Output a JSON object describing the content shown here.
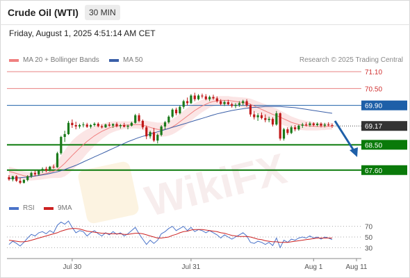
{
  "header": {
    "title": "Crude Oil (WTI)",
    "timeframe": "30 MIN"
  },
  "timestamp": "Friday, August 1, 2025 4:51:14 AM CET",
  "legend": {
    "ma20": "MA 20 + Bollinger Bands",
    "ma50": "MA 50",
    "rsi": "RSI",
    "rsi_ma": "9MA"
  },
  "credit": "Research © 2025 Trading Central",
  "watermark": "WikiFX",
  "colors": {
    "bull": "#1a7a1a",
    "bear": "#c01818",
    "support": "#0a7a0a",
    "resistance": "#e88080",
    "pivot": "#1e5fa8",
    "ma20": "#f08080",
    "ma50": "#3a5fa8",
    "rsi": "#4a73c9",
    "rsi_ma": "#cc2222",
    "arrow": "#1e5fa8"
  },
  "levels": [
    {
      "value": "71.10",
      "kind": "resistance"
    },
    {
      "value": "70.50",
      "kind": "resistance"
    },
    {
      "value": "69.90",
      "kind": "pivot"
    },
    {
      "value": "69.17",
      "kind": "last"
    },
    {
      "value": "68.50",
      "kind": "support"
    },
    {
      "value": "67.60",
      "kind": "support"
    }
  ],
  "x_axis": [
    "Jul 30",
    "Jul 31",
    "Aug 1",
    "Aug 11"
  ],
  "rsi_axis": [
    "70",
    "50",
    "30"
  ],
  "chart_data": {
    "type": "candlestick",
    "price_ylim": [
      67.1,
      71.3
    ],
    "rsi_ylim": [
      20,
      80
    ],
    "candles": [
      [
        67.35,
        67.42,
        67.22,
        67.27
      ],
      [
        67.27,
        67.4,
        67.2,
        67.38
      ],
      [
        67.38,
        67.42,
        67.18,
        67.22
      ],
      [
        67.22,
        67.33,
        67.1,
        67.15
      ],
      [
        67.15,
        67.28,
        67.12,
        67.25
      ],
      [
        67.25,
        67.42,
        67.2,
        67.38
      ],
      [
        67.38,
        67.55,
        67.32,
        67.5
      ],
      [
        67.5,
        67.58,
        67.38,
        67.45
      ],
      [
        67.45,
        67.62,
        67.4,
        67.58
      ],
      [
        67.58,
        67.7,
        67.5,
        67.64
      ],
      [
        67.64,
        67.72,
        67.52,
        67.58
      ],
      [
        67.58,
        67.75,
        67.55,
        67.72
      ],
      [
        67.72,
        67.8,
        67.65,
        67.7
      ],
      [
        67.7,
        68.25,
        67.68,
        68.2
      ],
      [
        68.2,
        68.82,
        68.15,
        68.78
      ],
      [
        68.78,
        69.0,
        68.6,
        68.88
      ],
      [
        68.88,
        69.35,
        68.85,
        69.28
      ],
      [
        69.28,
        69.4,
        69.1,
        69.2
      ],
      [
        69.2,
        69.32,
        69.05,
        69.15
      ],
      [
        69.15,
        69.25,
        69.08,
        69.2
      ],
      [
        69.2,
        69.3,
        69.12,
        69.22
      ],
      [
        69.22,
        69.28,
        69.1,
        69.14
      ],
      [
        69.14,
        69.24,
        69.08,
        69.2
      ],
      [
        69.2,
        69.3,
        69.15,
        69.25
      ],
      [
        69.25,
        69.3,
        69.12,
        69.16
      ],
      [
        69.16,
        69.22,
        69.08,
        69.12
      ],
      [
        69.12,
        69.25,
        69.1,
        69.22
      ],
      [
        69.22,
        69.3,
        69.14,
        69.18
      ],
      [
        69.18,
        69.26,
        69.1,
        69.24
      ],
      [
        69.24,
        69.3,
        69.12,
        69.16
      ],
      [
        69.16,
        69.24,
        69.08,
        69.2
      ],
      [
        69.2,
        69.28,
        69.12,
        69.14
      ],
      [
        69.14,
        69.22,
        69.05,
        69.18
      ],
      [
        69.18,
        69.32,
        69.15,
        69.28
      ],
      [
        69.28,
        69.6,
        69.25,
        69.55
      ],
      [
        69.55,
        69.62,
        69.3,
        69.35
      ],
      [
        69.35,
        69.4,
        69.05,
        69.12
      ],
      [
        69.12,
        69.18,
        68.7,
        68.8
      ],
      [
        68.8,
        69.0,
        68.72,
        68.95
      ],
      [
        68.95,
        69.1,
        68.6,
        68.65
      ],
      [
        68.65,
        68.9,
        68.55,
        68.85
      ],
      [
        68.85,
        69.2,
        68.8,
        69.15
      ],
      [
        69.15,
        69.35,
        69.05,
        69.3
      ],
      [
        69.3,
        69.55,
        69.25,
        69.5
      ],
      [
        69.5,
        69.8,
        69.45,
        69.75
      ],
      [
        69.75,
        69.82,
        69.55,
        69.62
      ],
      [
        69.62,
        69.9,
        69.58,
        69.85
      ],
      [
        69.85,
        70.1,
        69.78,
        70.05
      ],
      [
        70.05,
        70.18,
        69.9,
        69.98
      ],
      [
        69.98,
        70.3,
        69.95,
        70.25
      ],
      [
        70.25,
        70.35,
        70.05,
        70.12
      ],
      [
        70.12,
        70.3,
        70.08,
        70.25
      ],
      [
        70.25,
        70.32,
        70.15,
        70.22
      ],
      [
        70.22,
        70.3,
        70.08,
        70.12
      ],
      [
        70.12,
        70.25,
        70.05,
        70.2
      ],
      [
        70.2,
        70.28,
        70.1,
        70.15
      ],
      [
        70.15,
        70.22,
        70.0,
        70.05
      ],
      [
        70.05,
        70.12,
        69.9,
        69.95
      ],
      [
        69.95,
        70.08,
        69.88,
        70.02
      ],
      [
        70.02,
        70.1,
        69.9,
        69.94
      ],
      [
        69.94,
        70.0,
        69.82,
        69.88
      ],
      [
        69.88,
        69.98,
        69.8,
        69.92
      ],
      [
        69.92,
        70.05,
        69.85,
        69.98
      ],
      [
        69.98,
        70.1,
        69.9,
        70.05
      ],
      [
        70.05,
        70.12,
        69.85,
        69.9
      ],
      [
        69.9,
        69.95,
        69.5,
        69.58
      ],
      [
        69.58,
        69.7,
        69.4,
        69.48
      ],
      [
        69.48,
        69.62,
        69.35,
        69.55
      ],
      [
        69.55,
        69.65,
        69.4,
        69.45
      ],
      [
        69.45,
        69.58,
        69.3,
        69.38
      ],
      [
        69.38,
        69.5,
        69.3,
        69.42
      ],
      [
        69.42,
        69.48,
        69.15,
        69.22
      ],
      [
        69.22,
        69.7,
        69.18,
        69.62
      ],
      [
        69.62,
        69.65,
        68.65,
        68.72
      ],
      [
        68.72,
        69.1,
        68.65,
        69.05
      ],
      [
        69.05,
        69.12,
        68.85,
        68.92
      ],
      [
        68.92,
        69.18,
        68.88,
        69.12
      ],
      [
        69.12,
        69.2,
        68.98,
        69.05
      ],
      [
        69.05,
        69.22,
        69.0,
        69.18
      ],
      [
        69.18,
        69.28,
        69.1,
        69.22
      ],
      [
        69.22,
        69.3,
        69.15,
        69.2
      ],
      [
        69.2,
        69.32,
        69.14,
        69.26
      ],
      [
        69.26,
        69.3,
        69.15,
        69.2
      ],
      [
        69.2,
        69.3,
        69.15,
        69.25
      ],
      [
        69.25,
        69.3,
        69.12,
        69.18
      ],
      [
        69.18,
        69.28,
        69.12,
        69.22
      ],
      [
        69.22,
        69.3,
        69.15,
        69.2
      ],
      [
        69.2,
        69.26,
        69.1,
        69.17
      ]
    ],
    "ma20": [
      67.55,
      67.52,
      67.48,
      67.44,
      67.4,
      67.38,
      67.38,
      67.4,
      67.42,
      67.45,
      67.48,
      67.52,
      67.56,
      67.62,
      67.72,
      67.84,
      67.98,
      68.12,
      68.25,
      68.38,
      68.5,
      68.62,
      68.72,
      68.82,
      68.9,
      68.98,
      69.04,
      69.1,
      69.14,
      69.17,
      69.18,
      69.2,
      69.2,
      69.21,
      69.22,
      69.22,
      69.2,
      69.16,
      69.12,
      69.08,
      69.05,
      69.04,
      69.05,
      69.08,
      69.14,
      69.22,
      69.32,
      69.42,
      69.52,
      69.62,
      69.72,
      69.8,
      69.88,
      69.94,
      70.0,
      70.04,
      70.06,
      70.08,
      70.08,
      70.08,
      70.06,
      70.04,
      70.02,
      70.0,
      69.98,
      69.94,
      69.88,
      69.82,
      69.76,
      69.7,
      69.64,
      69.58,
      69.54,
      69.48,
      69.42,
      69.36,
      69.3,
      69.26,
      69.22,
      69.2,
      69.18,
      69.17,
      69.16,
      69.15,
      69.15,
      69.15,
      69.16,
      69.16
    ],
    "ma50": [
      67.3,
      67.31,
      67.32,
      67.33,
      67.34,
      67.35,
      67.37,
      67.39,
      67.41,
      67.43,
      67.45,
      67.48,
      67.51,
      67.54,
      67.58,
      67.62,
      67.67,
      67.72,
      67.77,
      67.83,
      67.89,
      67.95,
      68.01,
      68.07,
      68.13,
      68.19,
      68.25,
      68.31,
      68.37,
      68.43,
      68.49,
      68.55,
      68.61,
      68.66,
      68.71,
      68.76,
      68.8,
      68.84,
      68.88,
      68.92,
      68.96,
      69.0,
      69.04,
      69.08,
      69.12,
      69.16,
      69.2,
      69.24,
      69.28,
      69.32,
      69.36,
      69.4,
      69.44,
      69.48,
      69.52,
      69.56,
      69.6,
      69.63,
      69.66,
      69.69,
      69.72,
      69.74,
      69.76,
      69.78,
      69.8,
      69.82,
      69.83,
      69.84,
      69.85,
      69.86,
      69.86,
      69.86,
      69.86,
      69.86,
      69.85,
      69.84,
      69.83,
      69.82,
      69.8,
      69.78,
      69.76,
      69.74,
      69.72,
      69.7,
      69.68,
      69.66,
      69.64,
      69.62
    ],
    "bb_width": [
      0.35,
      0.34,
      0.33,
      0.32,
      0.3,
      0.3,
      0.3,
      0.32,
      0.34,
      0.36,
      0.38,
      0.42,
      0.48,
      0.6,
      0.78,
      0.92,
      1.02,
      1.06,
      1.05,
      1.0,
      0.94,
      0.86,
      0.78,
      0.7,
      0.62,
      0.55,
      0.48,
      0.42,
      0.38,
      0.34,
      0.3,
      0.28,
      0.26,
      0.26,
      0.28,
      0.3,
      0.34,
      0.38,
      0.42,
      0.46,
      0.48,
      0.5,
      0.5,
      0.52,
      0.54,
      0.56,
      0.58,
      0.58,
      0.58,
      0.56,
      0.52,
      0.48,
      0.44,
      0.4,
      0.36,
      0.34,
      0.32,
      0.3,
      0.3,
      0.3,
      0.3,
      0.32,
      0.34,
      0.36,
      0.38,
      0.4,
      0.42,
      0.44,
      0.46,
      0.48,
      0.5,
      0.5,
      0.5,
      0.48,
      0.46,
      0.44,
      0.42,
      0.4,
      0.38,
      0.36,
      0.34,
      0.32,
      0.3,
      0.28,
      0.26,
      0.25,
      0.24,
      0.24
    ],
    "rsi": [
      36,
      42,
      38,
      33,
      40,
      48,
      55,
      52,
      58,
      60,
      56,
      62,
      58,
      72,
      78,
      74,
      80,
      68,
      58,
      62,
      60,
      52,
      58,
      62,
      56,
      52,
      58,
      54,
      60,
      55,
      58,
      52,
      56,
      62,
      68,
      56,
      46,
      36,
      44,
      38,
      44,
      56,
      60,
      66,
      70,
      62,
      66,
      70,
      62,
      68,
      60,
      64,
      62,
      58,
      62,
      58,
      54,
      48,
      54,
      50,
      46,
      50,
      54,
      58,
      52,
      40,
      38,
      42,
      40,
      36,
      40,
      34,
      48,
      30,
      44,
      40,
      46,
      44,
      48,
      50,
      48,
      52,
      48,
      50,
      46,
      50,
      48,
      45
    ],
    "rsi_ma": [
      44,
      43,
      42,
      41,
      41,
      42,
      44,
      46,
      48,
      50,
      52,
      54,
      56,
      58,
      61,
      63,
      65,
      66,
      66,
      65,
      63,
      61,
      60,
      59,
      58,
      57,
      57,
      56,
      56,
      56,
      56,
      55,
      55,
      56,
      57,
      57,
      56,
      54,
      52,
      50,
      48,
      48,
      49,
      50,
      53,
      55,
      58,
      60,
      61,
      63,
      64,
      64,
      64,
      63,
      62,
      61,
      60,
      58,
      57,
      55,
      53,
      52,
      51,
      51,
      51,
      50,
      48,
      46,
      45,
      43,
      42,
      41,
      41,
      40,
      40,
      40,
      41,
      42,
      43,
      44,
      45,
      46,
      47,
      48,
      48,
      48,
      48,
      48
    ]
  }
}
